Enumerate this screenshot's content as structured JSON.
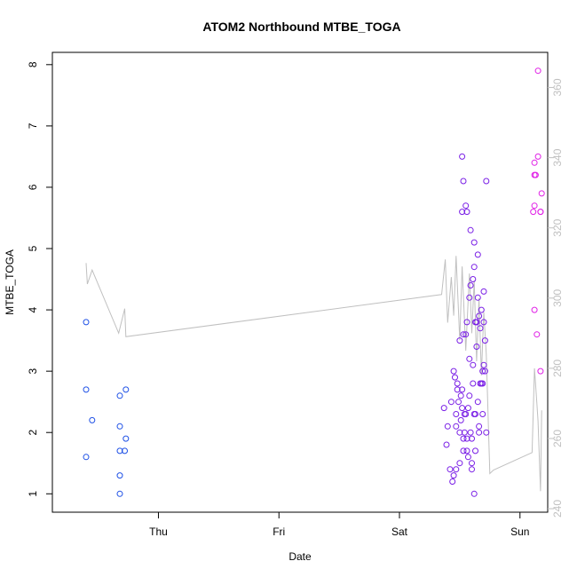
{
  "chart_data": {
    "type": "scatter",
    "title": "ATOM2 Northbound MTBE_TOGA",
    "xlabel": "Date",
    "ylabel": "MTBE_TOGA",
    "x_ticks": [
      "Thu",
      "Fri",
      "Sat",
      "Sun"
    ],
    "y_ticks": [
      "1",
      "2",
      "3",
      "4",
      "5",
      "6",
      "7",
      "8"
    ],
    "ylim": [
      0.7,
      8.2
    ],
    "y2_ticks": [
      "240",
      "260",
      "280",
      "300",
      "320",
      "340",
      "360"
    ],
    "y2lim": [
      239,
      370
    ],
    "xlim": [
      -0.88,
      3.23
    ],
    "grid": false,
    "legend": "none",
    "colors": {
      "early": "#1e50e6",
      "mid": "#7a1fe6",
      "late": "#e020e6",
      "line": "#c0c0c0"
    },
    "series": [
      {
        "color": "#1e50e6",
        "x": [
          -0.6,
          -0.6,
          -0.55,
          -0.6,
          -0.32,
          -0.32,
          -0.32,
          -0.27,
          -0.27,
          -0.28,
          -0.32,
          -0.32
        ],
        "y": [
          3.8,
          2.7,
          2.2,
          1.6,
          2.6,
          2.1,
          1.3,
          2.7,
          1.9,
          1.7,
          1.7,
          1.0
        ]
      },
      {
        "color": "#7a1fe6",
        "x": [
          2.37,
          2.4,
          2.43,
          2.47,
          2.5,
          2.53,
          2.56,
          2.6,
          2.63,
          2.66,
          2.69,
          2.72,
          2.39,
          2.42,
          2.45,
          2.48,
          2.51,
          2.54,
          2.57,
          2.6,
          2.63,
          2.66,
          2.69,
          2.44,
          2.47,
          2.5,
          2.53,
          2.56,
          2.59,
          2.62,
          2.65,
          2.68,
          2.71,
          2.45,
          2.48,
          2.51,
          2.54,
          2.57,
          2.6,
          2.63,
          2.66,
          2.69,
          2.46,
          2.49,
          2.52,
          2.55,
          2.58,
          2.61,
          2.64,
          2.67,
          2.7,
          2.47,
          2.5,
          2.53,
          2.56,
          2.59,
          2.62,
          2.65,
          2.68,
          2.71,
          2.52,
          2.55,
          2.58,
          2.61,
          2.64,
          2.67,
          2.7,
          2.53,
          2.56,
          2.59,
          2.62,
          2.65,
          2.52,
          2.55,
          2.58,
          2.61,
          2.64,
          2.62,
          2.7,
          2.72,
          2.52
        ],
        "y": [
          2.4,
          2.1,
          2.5,
          2.3,
          2.0,
          1.9,
          1.7,
          1.5,
          2.3,
          2.0,
          2.8,
          2.0,
          1.8,
          1.4,
          1.3,
          2.7,
          2.2,
          2.0,
          1.6,
          1.4,
          1.7,
          2.1,
          2.3,
          1.2,
          1.4,
          1.5,
          1.7,
          1.9,
          2.0,
          2.3,
          2.5,
          2.8,
          3.0,
          3.0,
          2.8,
          2.6,
          2.3,
          2.4,
          1.9,
          3.8,
          3.9,
          3.0,
          2.9,
          2.5,
          2.4,
          3.6,
          3.2,
          3.1,
          3.4,
          3.7,
          3.8,
          2.1,
          3.5,
          3.6,
          3.8,
          4.4,
          4.7,
          4.2,
          4.0,
          3.5,
          6.5,
          5.7,
          4.2,
          4.5,
          3.8,
          2.8,
          3.1,
          6.1,
          5.6,
          5.3,
          5.1,
          4.9,
          2.7,
          2.3,
          2.6,
          2.8,
          3.8,
          1.0,
          4.3,
          6.1,
          5.6
        ]
      },
      {
        "color": "#e020e6",
        "x": [
          3.15,
          3.15,
          3.12,
          3.13,
          3.18,
          3.17,
          3.12,
          3.17,
          3.12,
          3.12,
          3.14,
          3.11,
          3.17
        ],
        "y": [
          7.9,
          6.5,
          6.4,
          6.2,
          5.9,
          5.6,
          5.7,
          5.6,
          6.2,
          4.0,
          3.6,
          5.6,
          3.0
        ]
      }
    ],
    "line_series": {
      "color": "#c0c0c0",
      "x": [
        -0.6,
        -0.59,
        -0.55,
        -0.33,
        -0.28,
        -0.27,
        2.35,
        2.38,
        2.4,
        2.43,
        2.45,
        2.47,
        2.5,
        2.52,
        2.55,
        2.58,
        2.6,
        2.62,
        2.64,
        2.66,
        2.68,
        2.7,
        2.72,
        2.75,
        2.78,
        3.1,
        3.12,
        3.14,
        3.15,
        3.17,
        3.18
      ],
      "y": [
        310,
        304,
        308,
        290,
        297,
        289,
        301,
        311,
        293,
        306,
        295,
        312,
        288,
        309,
        285,
        307,
        290,
        305,
        282,
        300,
        278,
        296,
        284,
        250,
        251,
        256,
        280,
        270,
        265,
        245,
        268
      ]
    }
  }
}
